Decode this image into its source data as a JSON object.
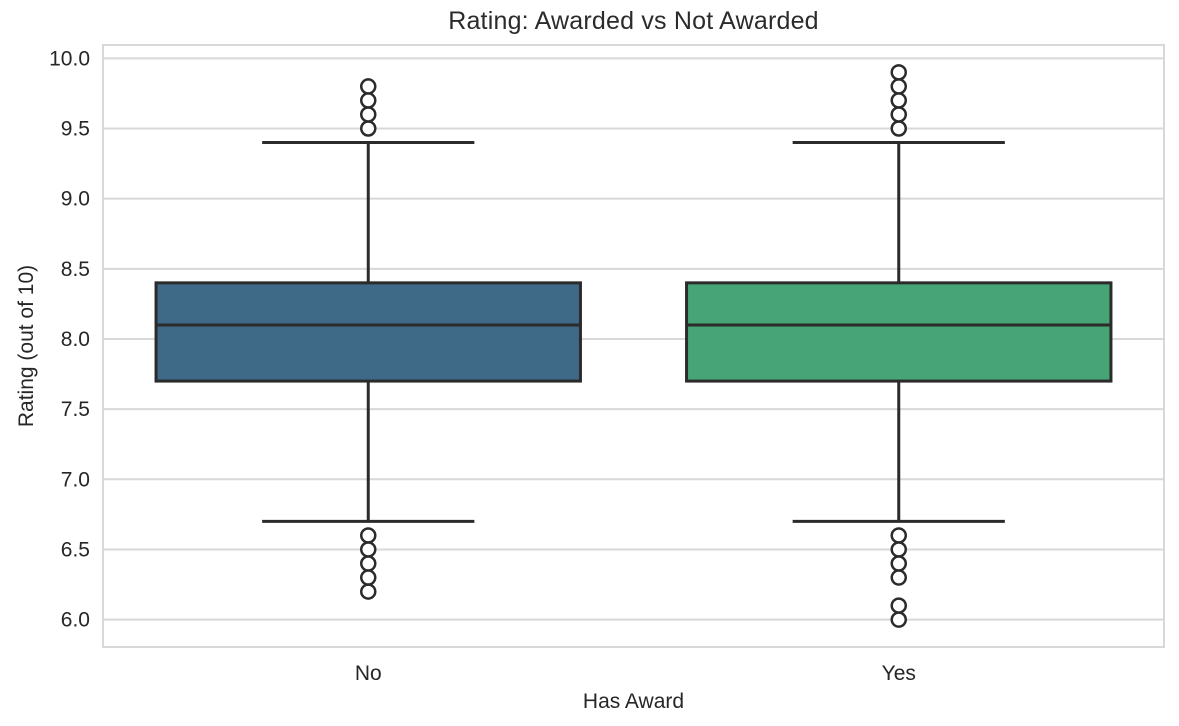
{
  "chart_data": {
    "type": "boxplot",
    "title": "Rating: Awarded vs Not Awarded",
    "xlabel": "Has Award",
    "ylabel": "Rating (out of 10)",
    "categories": [
      "No",
      "Yes"
    ],
    "ylim": [
      5.805,
      10.095
    ],
    "yticks": [
      {
        "value": 6.0,
        "label": "6.0"
      },
      {
        "value": 6.5,
        "label": "6.5"
      },
      {
        "value": 7.0,
        "label": "7.0"
      },
      {
        "value": 7.5,
        "label": "7.5"
      },
      {
        "value": 8.0,
        "label": "8.0"
      },
      {
        "value": 8.5,
        "label": "8.5"
      },
      {
        "value": 9.0,
        "label": "9.0"
      },
      {
        "value": 9.5,
        "label": "9.5"
      },
      {
        "value": 10.0,
        "label": "10.0"
      }
    ],
    "grid": "horizontal",
    "legend": "none",
    "series": [
      {
        "name": "No",
        "box_color": "#3E6A88",
        "whisker_low": 6.7,
        "q1": 7.7,
        "median": 8.1,
        "q3": 8.4,
        "whisker_high": 9.4,
        "outliers_high": [
          9.5,
          9.6,
          9.7,
          9.8
        ],
        "outliers_low": [
          6.6,
          6.5,
          6.4,
          6.3,
          6.2
        ]
      },
      {
        "name": "Yes",
        "box_color": "#47A476",
        "whisker_low": 6.7,
        "q1": 7.7,
        "median": 8.1,
        "q3": 8.4,
        "whisker_high": 9.4,
        "outliers_high": [
          9.5,
          9.6,
          9.7,
          9.8,
          9.9
        ],
        "outliers_low": [
          6.6,
          6.5,
          6.4,
          6.3,
          6.1,
          6.0
        ]
      }
    ],
    "style": {
      "background": "#FFFFFF",
      "grid_color": "#D8D8D8",
      "spine_color": "#D8D8D8",
      "line_color": "#2B2B2B",
      "text_color": "#262626",
      "outlier_fill": "#FFFFFF"
    }
  }
}
